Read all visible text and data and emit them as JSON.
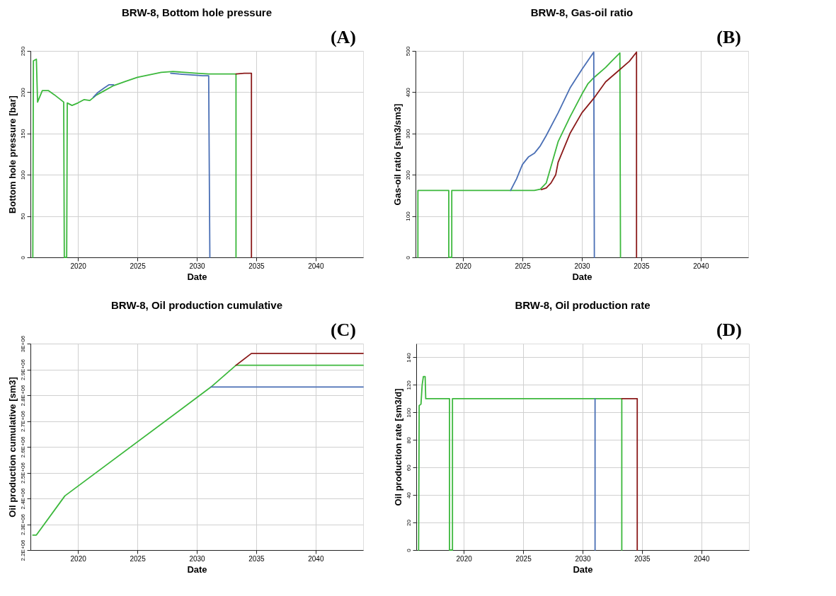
{
  "chart_data": [
    {
      "type": "line",
      "title": "BRW-8, Bottom hole pressure",
      "xlabel": "Date",
      "ylabel": "Bottom hole pressure [bar]",
      "annotations": [
        "(A)"
      ],
      "xlim": [
        2016,
        2044
      ],
      "xticks": [
        2020,
        2025,
        2030,
        2035,
        2040
      ],
      "ylim": [
        0,
        250
      ],
      "yticks": [
        0,
        50,
        100,
        150,
        200,
        250
      ],
      "grid": true,
      "series": [
        {
          "color": "#3cb83c",
          "x": [
            2016.2,
            2016.25,
            2016.5,
            2016.6,
            2017,
            2017.5,
            2018,
            2018.8,
            2018.85,
            2019.05,
            2019.1,
            2019.5,
            2020,
            2020.5,
            2021,
            2021.5,
            2022,
            2023,
            2024,
            2025,
            2026,
            2027,
            2028,
            2029,
            2030,
            2031,
            2032,
            2033,
            2033.3,
            2033.3
          ],
          "values": [
            0,
            238,
            240,
            188,
            202,
            202,
            197,
            188,
            0,
            0,
            187,
            184,
            187,
            191,
            190,
            196,
            200,
            208,
            213,
            218,
            221,
            224,
            225,
            224,
            223,
            222,
            222,
            222,
            222,
            0
          ]
        },
        {
          "color": "#4a6fb5",
          "x": [
            2021.3,
            2021.7,
            2022.2,
            2022.6,
            2023,
            2027.3,
            2027.8,
            2028.5,
            2029.5,
            2030.5,
            2031,
            2031.1
          ],
          "values": [
            194,
            200,
            205,
            209,
            209,
            null,
            223,
            222,
            221,
            220,
            220,
            0
          ]
        },
        {
          "color": "#8b1a1a",
          "x": [
            2033.3,
            2034,
            2034.6,
            2034.6
          ],
          "values": [
            222,
            223,
            223,
            0
          ]
        }
      ]
    },
    {
      "type": "line",
      "title": "BRW-8, Gas-oil ratio",
      "xlabel": "Date",
      "ylabel": "Gas-oil ratio [sm3/sm3]",
      "annotations": [
        "(B)"
      ],
      "xlim": [
        2016,
        2044
      ],
      "xticks": [
        2020,
        2025,
        2030,
        2035,
        2040
      ],
      "ylim": [
        0,
        500
      ],
      "yticks": [
        0,
        100,
        200,
        300,
        400,
        500
      ],
      "grid": true,
      "series": [
        {
          "color": "#3cb83c",
          "x": [
            2016.2,
            2016.2,
            2018.8,
            2018.8,
            2019.05,
            2019.05,
            2026,
            2026.5,
            2027,
            2027.5,
            2028,
            2029,
            2030,
            2030.5,
            2031,
            2032,
            2032.5,
            2033.2,
            2033.25
          ],
          "values": [
            0,
            162,
            162,
            0,
            0,
            162,
            162,
            165,
            180,
            230,
            280,
            340,
            395,
            420,
            435,
            460,
            475,
            495,
            0
          ]
        },
        {
          "color": "#4a6fb5",
          "x": [
            2024,
            2024.5,
            2025,
            2025.5,
            2026,
            2026.5,
            2027,
            2028,
            2029,
            2030,
            2031,
            2031.05
          ],
          "values": [
            162,
            190,
            225,
            243,
            252,
            270,
            295,
            350,
            410,
            455,
            497,
            0
          ]
        },
        {
          "color": "#8b1a1a",
          "x": [
            2026.6,
            2027,
            2027.4,
            2027.8,
            2028,
            2029,
            2030,
            2031,
            2031.5,
            2032,
            2033,
            2034,
            2034.6,
            2034.6
          ],
          "values": [
            164,
            168,
            180,
            200,
            230,
            300,
            350,
            385,
            405,
            425,
            450,
            475,
            497,
            0
          ]
        }
      ]
    },
    {
      "type": "line",
      "title": "BRW-8, Oil production cumulative",
      "xlabel": "Date",
      "ylabel": "Oil production cumulative [sm3]",
      "annotations": [
        "(C)"
      ],
      "xlim": [
        2016,
        2044
      ],
      "xticks": [
        2020,
        2025,
        2030,
        2035,
        2040
      ],
      "ylim": [
        2200000,
        3000000
      ],
      "yticks": [
        {
          "value": 2200000,
          "label": "2.2E+06"
        },
        {
          "value": 2300000,
          "label": "2.3E+06"
        },
        {
          "value": 2400000,
          "label": "2.4E+06"
        },
        {
          "value": 2500000,
          "label": "2.5E+06"
        },
        {
          "value": 2600000,
          "label": "2.6E+06"
        },
        {
          "value": 2700000,
          "label": "2.7E+06"
        },
        {
          "value": 2800000,
          "label": "2.8E+06"
        },
        {
          "value": 2900000,
          "label": "2.9E+06"
        },
        {
          "value": 3000000,
          "label": "3E+06"
        }
      ],
      "grid": true,
      "series": [
        {
          "color": "#3cb83c",
          "x": [
            2016.2,
            2016.5,
            2018.9,
            2031.2,
            2033.3,
            2044
          ],
          "values": [
            2258000,
            2258000,
            2410000,
            2832000,
            2916000,
            2916000
          ]
        },
        {
          "color": "#4a6fb5",
          "x": [
            2031.2,
            2044
          ],
          "values": [
            2832000,
            2832000
          ]
        },
        {
          "color": "#8b1a1a",
          "x": [
            2033.3,
            2034.6,
            2044
          ],
          "values": [
            2916000,
            2962000,
            2962000
          ]
        }
      ]
    },
    {
      "type": "line",
      "title": "BRW-8, Oil production rate",
      "xlabel": "Date",
      "ylabel": "Oil production rate [sm3/d]",
      "annotations": [
        "(D)"
      ],
      "xlim": [
        2016,
        2044
      ],
      "xticks": [
        2020,
        2025,
        2030,
        2035,
        2040
      ],
      "ylim": [
        0,
        150
      ],
      "yticks": [
        0,
        20,
        40,
        60,
        80,
        100,
        120,
        140
      ],
      "grid": true,
      "series": [
        {
          "color": "#3cb83c",
          "x": [
            2016.2,
            2016.25,
            2016.4,
            2016.5,
            2016.6,
            2016.75,
            2016.8,
            2018.8,
            2018.8,
            2019.05,
            2019.05,
            2033.3,
            2033.3
          ],
          "values": [
            0,
            105,
            106,
            120,
            126,
            126,
            110,
            110,
            0,
            0,
            110,
            110,
            0
          ]
        },
        {
          "color": "#4a6fb5",
          "x": [
            2031.05,
            2031.05
          ],
          "values": [
            110,
            0
          ]
        },
        {
          "color": "#8b1a1a",
          "x": [
            2033.3,
            2034.6,
            2034.6
          ],
          "values": [
            110,
            110,
            0
          ]
        }
      ]
    }
  ]
}
